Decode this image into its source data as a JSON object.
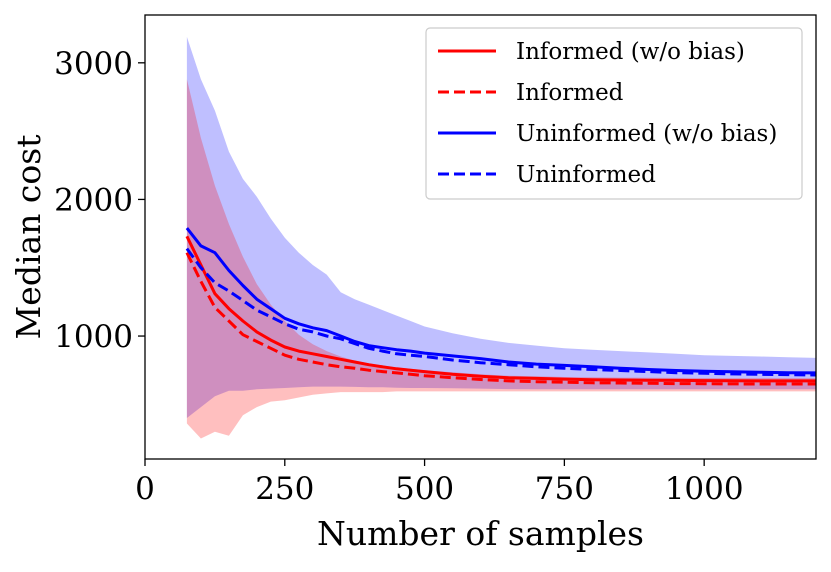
{
  "chart_data": {
    "type": "line",
    "title": "",
    "xlabel": "Number of samples",
    "ylabel": "Median cost",
    "xlim": [
      0,
      1200
    ],
    "ylim": [
      100,
      3350
    ],
    "xticks": [
      0,
      250,
      500,
      750,
      1000
    ],
    "yticks": [
      1000,
      2000,
      3000
    ],
    "grid": false,
    "legend_position": "top-right",
    "x": [
      75,
      100,
      125,
      150,
      175,
      200,
      225,
      250,
      275,
      300,
      325,
      350,
      375,
      400,
      425,
      450,
      475,
      500,
      550,
      600,
      650,
      700,
      750,
      800,
      850,
      900,
      950,
      1000,
      1050,
      1100,
      1150,
      1200
    ],
    "series": [
      {
        "name": "Informed (w/o bias)",
        "color": "#ff0000",
        "linestyle": "solid",
        "values": [
          1730,
          1520,
          1310,
          1200,
          1110,
          1030,
          970,
          920,
          890,
          870,
          850,
          830,
          810,
          790,
          775,
          760,
          750,
          740,
          720,
          705,
          695,
          690,
          685,
          680,
          678,
          676,
          675,
          674,
          673,
          672,
          672,
          672
        ]
      },
      {
        "name": "Informed",
        "color": "#ff0000",
        "linestyle": "dashed",
        "values": [
          1610,
          1400,
          1210,
          1110,
          1010,
          960,
          910,
          860,
          830,
          810,
          790,
          775,
          765,
          750,
          740,
          730,
          720,
          710,
          695,
          682,
          672,
          666,
          662,
          658,
          656,
          654,
          652,
          651,
          650,
          649,
          649,
          649
        ]
      },
      {
        "name": "Uninformed (w/o bias)",
        "color": "#0000ff",
        "linestyle": "solid",
        "values": [
          1790,
          1660,
          1610,
          1480,
          1370,
          1270,
          1200,
          1130,
          1090,
          1060,
          1040,
          1000,
          960,
          930,
          915,
          900,
          890,
          875,
          855,
          835,
          810,
          795,
          785,
          775,
          765,
          755,
          748,
          742,
          738,
          735,
          732,
          730
        ]
      },
      {
        "name": "Uninformed",
        "color": "#0000ff",
        "linestyle": "dashed",
        "values": [
          1640,
          1500,
          1390,
          1330,
          1260,
          1190,
          1140,
          1090,
          1050,
          1030,
          1000,
          980,
          945,
          910,
          890,
          870,
          860,
          850,
          825,
          805,
          790,
          775,
          765,
          755,
          748,
          740,
          732,
          728,
          723,
          720,
          718,
          715
        ]
      }
    ],
    "bands": [
      {
        "series": "Uninformed",
        "color": "#0000ff",
        "opacity": 0.25,
        "lower": [
          400,
          480,
          560,
          600,
          600,
          610,
          615,
          620,
          625,
          630,
          630,
          630,
          628,
          625,
          625,
          622,
          620,
          620,
          618,
          615,
          612,
          610,
          610,
          610,
          610,
          610,
          610,
          610,
          610,
          610,
          610,
          610
        ],
        "upper": [
          3190,
          2880,
          2650,
          2350,
          2150,
          2020,
          1860,
          1720,
          1610,
          1520,
          1450,
          1320,
          1270,
          1230,
          1190,
          1150,
          1110,
          1070,
          1020,
          980,
          950,
          930,
          910,
          900,
          890,
          880,
          870,
          860,
          855,
          850,
          845,
          840
        ]
      },
      {
        "series": "Informed",
        "color": "#ff0000",
        "opacity": 0.25,
        "lower": [
          360,
          250,
          300,
          270,
          420,
          480,
          520,
          530,
          550,
          570,
          580,
          590,
          590,
          590,
          590,
          595,
          595,
          595,
          595,
          595,
          595,
          595,
          595,
          595,
          595,
          595,
          595,
          595,
          595,
          595,
          595,
          595
        ],
        "upper": [
          2880,
          2450,
          2100,
          1820,
          1580,
          1380,
          1230,
          1110,
          1010,
          940,
          890,
          850,
          820,
          800,
          785,
          770,
          760,
          750,
          735,
          720,
          710,
          705,
          700,
          698,
          696,
          695,
          694,
          693,
          692,
          692,
          692,
          692
        ]
      }
    ]
  }
}
